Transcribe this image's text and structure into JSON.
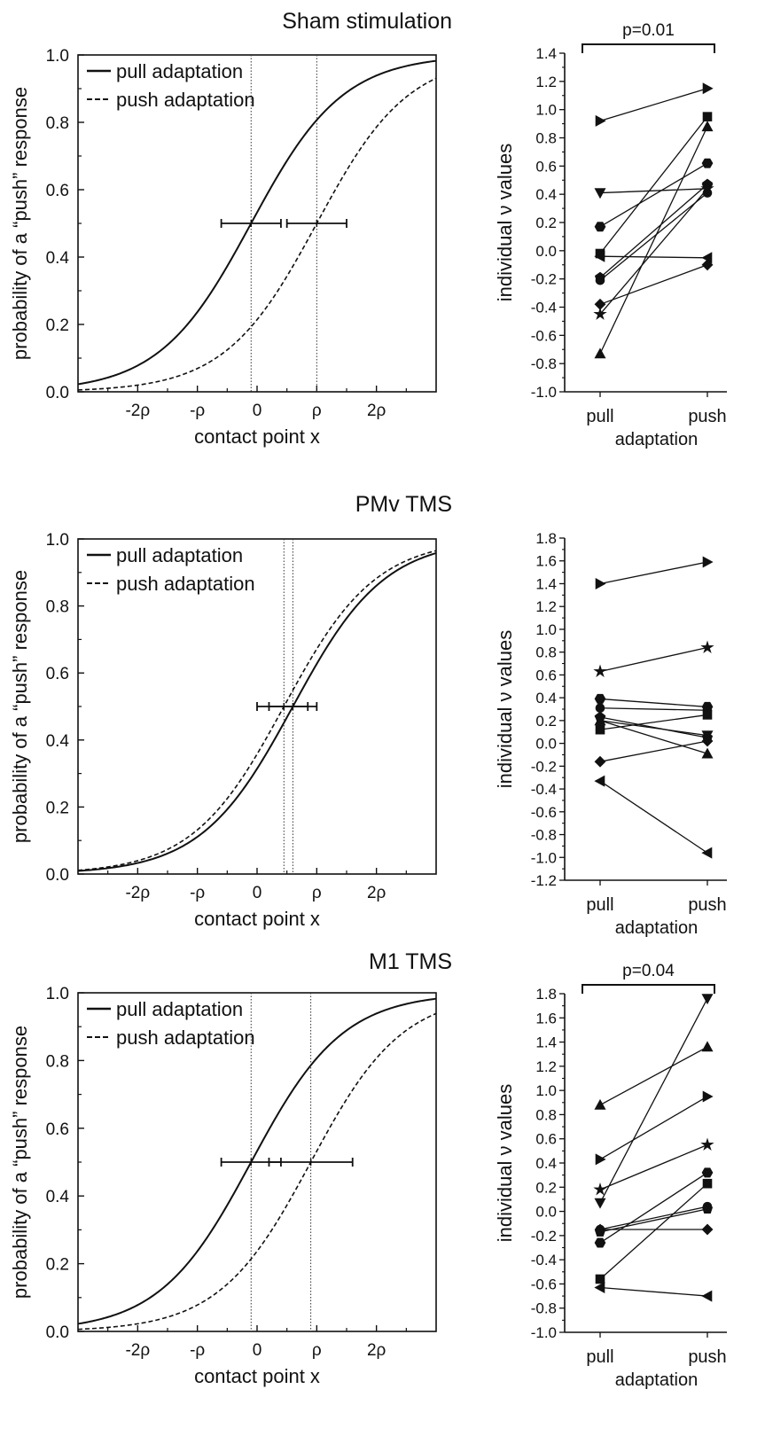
{
  "figure": {
    "panels": [
      {
        "title": "Sham stimulation",
        "psychometric": {
          "legend": [
            "pull adaptation",
            "push adaptation"
          ],
          "ylabel": "probability of a “push” response",
          "xlabel": "contact point x",
          "yticks": [
            "0.0",
            "0.2",
            "0.4",
            "0.6",
            "0.8",
            "1.0"
          ],
          "xticks": [
            "-2ρ",
            "-ρ",
            "0",
            "ρ",
            "2ρ"
          ]
        },
        "individual": {
          "ylabel": "individual ν values",
          "xlabel": "adaptation",
          "xticks": [
            "pull",
            "push"
          ],
          "yticks": [
            "-1.0",
            "-0.8",
            "-0.6",
            "-0.4",
            "-0.2",
            "0.0",
            "0.2",
            "0.4",
            "0.6",
            "0.8",
            "1.0",
            "1.2",
            "1.4"
          ],
          "pvalue": "p=0.01"
        }
      },
      {
        "title": "PMv TMS",
        "psychometric": {
          "legend": [
            "pull adaptation",
            "push adaptation"
          ],
          "ylabel": "probability of a “push” response",
          "xlabel": "contact point x",
          "yticks": [
            "0.0",
            "0.2",
            "0.4",
            "0.6",
            "0.8",
            "1.0"
          ],
          "xticks": [
            "-2ρ",
            "-ρ",
            "0",
            "ρ",
            "2ρ"
          ]
        },
        "individual": {
          "ylabel": "individual ν values",
          "xlabel": "adaptation",
          "xticks": [
            "pull",
            "push"
          ],
          "yticks": [
            "-1.2",
            "-1.0",
            "-0.8",
            "-0.6",
            "-0.4",
            "-0.2",
            "0.0",
            "0.2",
            "0.4",
            "0.6",
            "0.8",
            "1.0",
            "1.2",
            "1.4",
            "1.6",
            "1.8"
          ],
          "pvalue": ""
        }
      },
      {
        "title": "M1 TMS",
        "psychometric": {
          "legend": [
            "pull adaptation",
            "push adaptation"
          ],
          "ylabel": "probability of a “push” response",
          "xlabel": "contact point x",
          "yticks": [
            "0.0",
            "0.2",
            "0.4",
            "0.6",
            "0.8",
            "1.0"
          ],
          "xticks": [
            "-2ρ",
            "-ρ",
            "0",
            "ρ",
            "2ρ"
          ]
        },
        "individual": {
          "ylabel": "individual ν values",
          "xlabel": "adaptation",
          "xticks": [
            "pull",
            "push"
          ],
          "yticks": [
            "-1.0",
            "-0.8",
            "-0.6",
            "-0.4",
            "-0.2",
            "0.0",
            "0.2",
            "0.4",
            "0.6",
            "0.8",
            "1.0",
            "1.2",
            "1.4",
            "1.6",
            "1.8"
          ],
          "pvalue": "p=0.04"
        }
      }
    ]
  },
  "chart_data": [
    {
      "type": "line",
      "panel": "Sham stimulation",
      "xlim": [
        -3,
        3
      ],
      "ylim": [
        0,
        1
      ],
      "series": [
        {
          "name": "pull adaptation",
          "style": "solid",
          "pse": -0.1,
          "slope": 1.3,
          "ci": [
            -0.6,
            0.4
          ]
        },
        {
          "name": "push adaptation",
          "style": "dashed",
          "pse": 1.0,
          "slope": 1.3,
          "ci": [
            0.5,
            1.5
          ]
        }
      ]
    },
    {
      "type": "scatter",
      "panel": "Sham stimulation",
      "categories": [
        "pull",
        "push"
      ],
      "ylim": [
        -1.0,
        1.4
      ],
      "pairs": [
        {
          "marker": "triangle-right",
          "values": [
            0.92,
            1.15
          ]
        },
        {
          "marker": "square",
          "values": [
            -0.02,
            0.95
          ]
        },
        {
          "marker": "triangle-up",
          "values": [
            -0.73,
            0.88
          ]
        },
        {
          "marker": "hexagon",
          "values": [
            0.17,
            0.62
          ]
        },
        {
          "marker": "pentagon",
          "values": [
            -0.19,
            0.47
          ]
        },
        {
          "marker": "triangle-down",
          "values": [
            0.41,
            0.44
          ]
        },
        {
          "marker": "circle",
          "values": [
            -0.21,
            0.41
          ]
        },
        {
          "marker": "star",
          "values": [
            -0.45,
            0.44
          ]
        },
        {
          "marker": "triangle-left",
          "values": [
            -0.04,
            -0.05
          ]
        },
        {
          "marker": "diamond",
          "values": [
            -0.38,
            -0.1
          ]
        }
      ]
    },
    {
      "type": "line",
      "panel": "PMv TMS",
      "xlim": [
        -3,
        3
      ],
      "ylim": [
        0,
        1
      ],
      "series": [
        {
          "name": "pull adaptation",
          "style": "solid",
          "pse": 0.6,
          "slope": 1.3,
          "ci": [
            0.2,
            1.0
          ]
        },
        {
          "name": "push adaptation",
          "style": "dashed",
          "pse": 0.45,
          "slope": 1.3,
          "ci": [
            0.0,
            0.85
          ]
        }
      ]
    },
    {
      "type": "scatter",
      "panel": "PMv TMS",
      "categories": [
        "pull",
        "push"
      ],
      "ylim": [
        -1.2,
        1.8
      ],
      "pairs": [
        {
          "marker": "triangle-right",
          "values": [
            1.4,
            1.59
          ]
        },
        {
          "marker": "star",
          "values": [
            0.63,
            0.84
          ]
        },
        {
          "marker": "hexagon",
          "values": [
            0.39,
            0.32
          ]
        },
        {
          "marker": "circle",
          "values": [
            0.31,
            0.29
          ]
        },
        {
          "marker": "pentagon",
          "values": [
            0.23,
            0.05
          ]
        },
        {
          "marker": "triangle-down",
          "values": [
            0.2,
            0.07
          ]
        },
        {
          "marker": "square",
          "values": [
            0.12,
            0.25
          ]
        },
        {
          "marker": "triangle-up",
          "values": [
            0.2,
            -0.09
          ]
        },
        {
          "marker": "diamond",
          "values": [
            -0.16,
            0.02
          ]
        },
        {
          "marker": "triangle-left",
          "values": [
            -0.33,
            -0.96
          ]
        }
      ]
    },
    {
      "type": "line",
      "panel": "M1 TMS",
      "xlim": [
        -3,
        3
      ],
      "ylim": [
        0,
        1
      ],
      "series": [
        {
          "name": "pull adaptation",
          "style": "solid",
          "pse": -0.1,
          "slope": 1.3,
          "ci": [
            -0.6,
            0.4
          ]
        },
        {
          "name": "push adaptation",
          "style": "dashed",
          "pse": 0.9,
          "slope": 1.3,
          "ci": [
            0.2,
            1.6
          ]
        }
      ]
    },
    {
      "type": "scatter",
      "panel": "M1 TMS",
      "categories": [
        "pull",
        "push"
      ],
      "ylim": [
        -1.0,
        1.8
      ],
      "pairs": [
        {
          "marker": "triangle-down",
          "values": [
            0.07,
            1.76
          ]
        },
        {
          "marker": "triangle-up",
          "values": [
            0.88,
            1.36
          ]
        },
        {
          "marker": "triangle-right",
          "values": [
            0.43,
            0.95
          ]
        },
        {
          "marker": "star",
          "values": [
            0.18,
            0.55
          ]
        },
        {
          "marker": "hexagon",
          "values": [
            -0.26,
            0.32
          ]
        },
        {
          "marker": "square",
          "values": [
            -0.56,
            0.23
          ]
        },
        {
          "marker": "circle",
          "values": [
            -0.15,
            0.04
          ]
        },
        {
          "marker": "pentagon",
          "values": [
            -0.17,
            0.02
          ]
        },
        {
          "marker": "diamond",
          "values": [
            -0.15,
            -0.15
          ]
        },
        {
          "marker": "triangle-left",
          "values": [
            -0.63,
            -0.7
          ]
        }
      ]
    }
  ]
}
